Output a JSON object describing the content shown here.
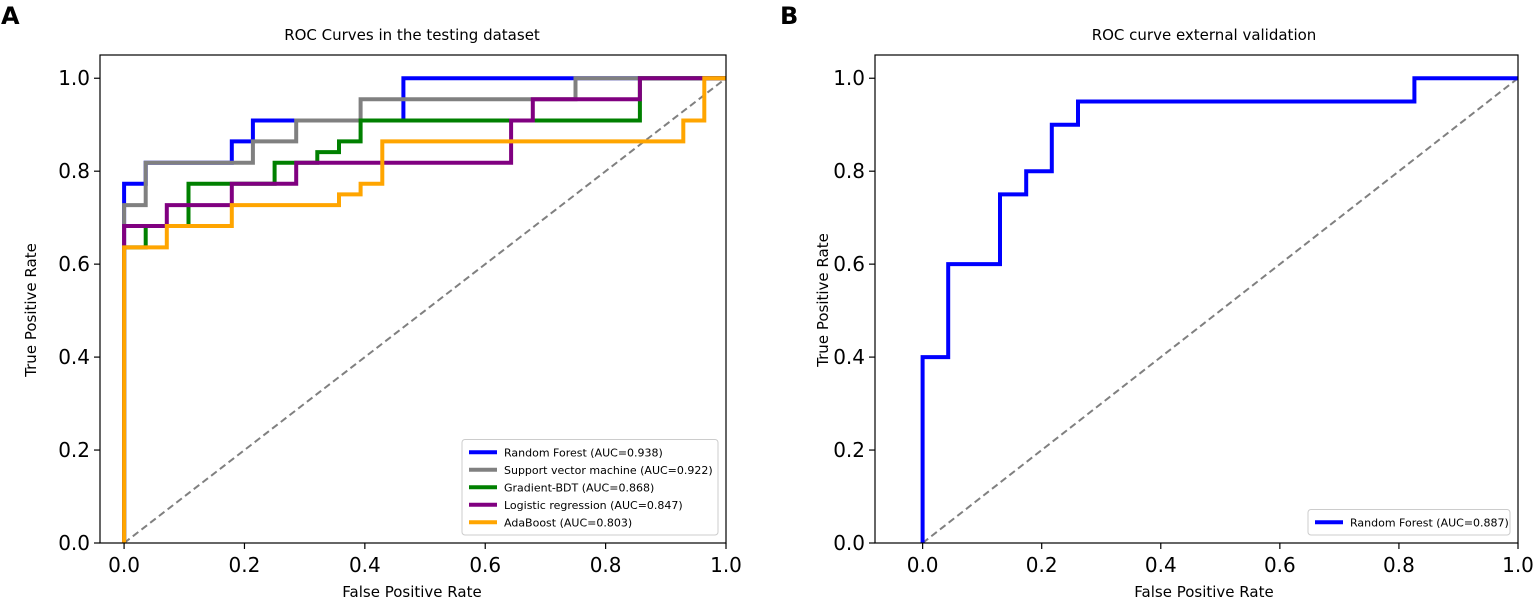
{
  "chart_data": [
    {
      "panel": "A",
      "type": "line",
      "title": "ROC Curves in the testing dataset",
      "xlabel": "False Positive Rate",
      "ylabel": "True Positive Rate",
      "xlim": [
        -0.04,
        1.0
      ],
      "ylim": [
        0.0,
        1.05
      ],
      "xticks": [
        0.0,
        0.2,
        0.4,
        0.6,
        0.8,
        1.0
      ],
      "xtick_labels": [
        "0.0",
        "0.2",
        "0.4",
        "0.6",
        "0.8",
        "1.0"
      ],
      "yticks": [
        0.0,
        0.2,
        0.4,
        0.6,
        0.8,
        1.0
      ],
      "ytick_labels": [
        "0.0",
        "0.2",
        "0.4",
        "0.6",
        "0.8",
        "1.0"
      ],
      "legend_position": "bottom-right",
      "diagonal": {
        "x": [
          0,
          1
        ],
        "y": [
          0,
          1
        ],
        "color": "#808080",
        "style": "dashed"
      },
      "series": [
        {
          "name": "Random Forest (AUC=0.938)",
          "color": "#0000ff",
          "x": [
            0,
            0,
            0.036,
            0.036,
            0.179,
            0.179,
            0.214,
            0.214,
            0.464,
            0.464,
            1.0
          ],
          "y": [
            0,
            0.773,
            0.773,
            0.818,
            0.818,
            0.864,
            0.864,
            0.909,
            0.909,
            1.0,
            1.0
          ]
        },
        {
          "name": "Support vector machine (AUC=0.922)",
          "color": "#808080",
          "x": [
            0,
            0,
            0.036,
            0.036,
            0.214,
            0.214,
            0.286,
            0.286,
            0.393,
            0.393,
            0.75,
            0.75,
            1.0
          ],
          "y": [
            0,
            0.727,
            0.727,
            0.818,
            0.818,
            0.864,
            0.864,
            0.909,
            0.909,
            0.955,
            0.955,
            1.0,
            1.0
          ]
        },
        {
          "name": "Gradient-BDT (AUC=0.868)",
          "color": "#008000",
          "x": [
            0,
            0,
            0.036,
            0.036,
            0.107,
            0.107,
            0.25,
            0.25,
            0.321,
            0.321,
            0.357,
            0.357,
            0.393,
            0.393,
            0.857,
            0.857,
            1.0
          ],
          "y": [
            0,
            0.636,
            0.636,
            0.682,
            0.682,
            0.773,
            0.773,
            0.818,
            0.818,
            0.841,
            0.841,
            0.864,
            0.864,
            0.909,
            0.909,
            1.0,
            1.0
          ]
        },
        {
          "name": "Logistic regression (AUC=0.847)",
          "color": "#800080",
          "x": [
            0,
            0,
            0.071,
            0.071,
            0.179,
            0.179,
            0.286,
            0.286,
            0.643,
            0.643,
            0.679,
            0.679,
            0.857,
            0.857,
            1.0
          ],
          "y": [
            0,
            0.682,
            0.682,
            0.727,
            0.727,
            0.773,
            0.773,
            0.818,
            0.818,
            0.909,
            0.909,
            0.955,
            0.955,
            1.0,
            1.0
          ]
        },
        {
          "name": "AdaBoost (AUC=0.803)",
          "color": "#ffa500",
          "x": [
            0,
            0,
            0.071,
            0.071,
            0.179,
            0.179,
            0.357,
            0.357,
            0.393,
            0.393,
            0.429,
            0.429,
            0.929,
            0.929,
            0.964,
            0.964,
            1.0
          ],
          "y": [
            0,
            0.636,
            0.636,
            0.682,
            0.682,
            0.727,
            0.727,
            0.75,
            0.75,
            0.773,
            0.773,
            0.864,
            0.864,
            0.909,
            0.909,
            1.0,
            1.0
          ]
        }
      ]
    },
    {
      "panel": "B",
      "type": "line",
      "title": "ROC curve external validation",
      "xlabel": "False Positive Rate",
      "ylabel": "True Positive Rate",
      "xlim": [
        -0.08,
        1.0
      ],
      "ylim": [
        0.0,
        1.05
      ],
      "xticks": [
        0.0,
        0.2,
        0.4,
        0.6,
        0.8,
        1.0
      ],
      "xtick_labels": [
        "0.0",
        "0.2",
        "0.4",
        "0.6",
        "0.8",
        "1.0"
      ],
      "yticks": [
        0.0,
        0.2,
        0.4,
        0.6,
        0.8,
        1.0
      ],
      "ytick_labels": [
        "0.0",
        "0.2",
        "0.4",
        "0.6",
        "0.8",
        "1.0"
      ],
      "legend_position": "bottom-right",
      "diagonal": {
        "x": [
          0,
          1
        ],
        "y": [
          0,
          1
        ],
        "color": "#808080",
        "style": "dashed"
      },
      "series": [
        {
          "name": "Random Forest (AUC=0.887)",
          "color": "#0000ff",
          "x": [
            0,
            0,
            0.043,
            0.043,
            0.13,
            0.13,
            0.174,
            0.174,
            0.217,
            0.217,
            0.261,
            0.261,
            0.826,
            0.826,
            1.0
          ],
          "y": [
            0,
            0.4,
            0.4,
            0.6,
            0.6,
            0.75,
            0.75,
            0.8,
            0.8,
            0.9,
            0.9,
            0.95,
            0.95,
            1.0,
            1.0
          ]
        }
      ]
    }
  ]
}
